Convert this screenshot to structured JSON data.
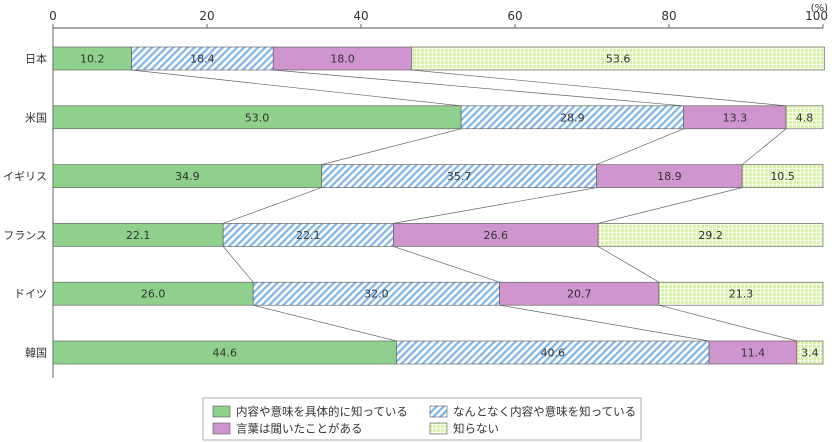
{
  "chart_data": {
    "type": "bar",
    "orientation": "horizontal",
    "stacked": true,
    "title": "",
    "unit": "(%)",
    "xlim": [
      0,
      100
    ],
    "xticks": [
      0,
      20,
      40,
      60,
      80,
      100
    ],
    "grid": false,
    "legend_position": "bottom",
    "categories": [
      "日本",
      "米国",
      "イギリス",
      "フランス",
      "ドイツ",
      "韓国"
    ],
    "series": [
      {
        "name": "内容や意味を具体的に知っている",
        "color": "#8fd18c",
        "pattern": "solid",
        "values": [
          10.2,
          53.0,
          34.9,
          22.1,
          26.0,
          44.6
        ]
      },
      {
        "name": "なんとなく内容や意味を知っている",
        "color": "#7fb4e8",
        "pattern": "diagonal-hatch",
        "values": [
          18.4,
          28.9,
          35.7,
          22.1,
          32.0,
          40.6
        ]
      },
      {
        "name": "言葉は聞いたことがある",
        "color": "#cf95cf",
        "pattern": "solid",
        "values": [
          18.0,
          13.3,
          18.9,
          26.6,
          20.7,
          11.4
        ]
      },
      {
        "name": "知らない",
        "color": "#d9f0a8",
        "pattern": "grid",
        "values": [
          53.6,
          4.8,
          10.5,
          29.2,
          21.3,
          3.4
        ]
      }
    ]
  }
}
